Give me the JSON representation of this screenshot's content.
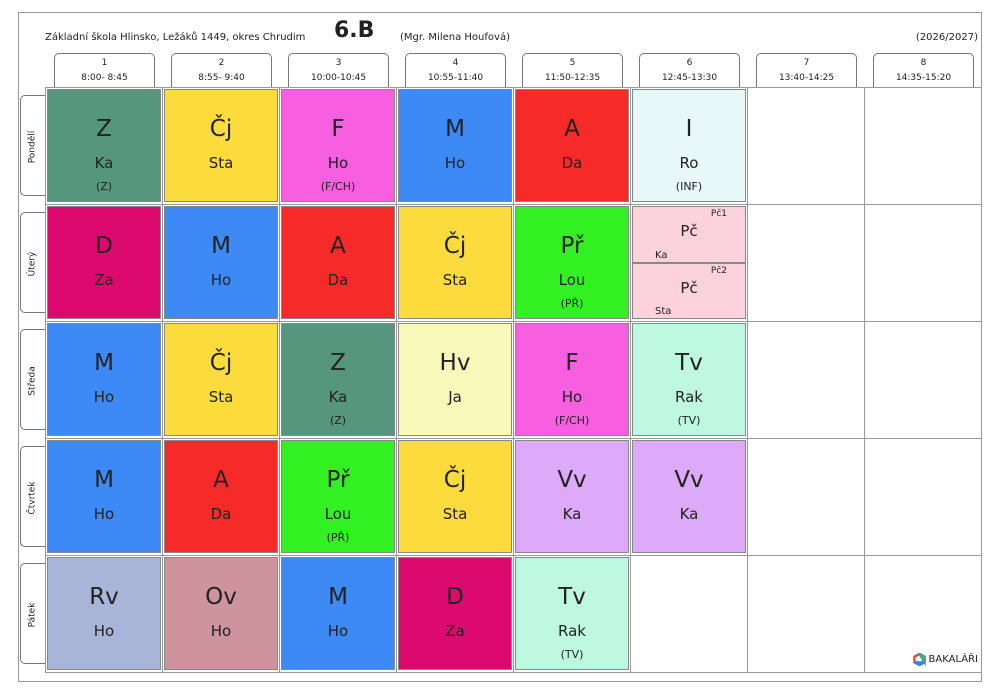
{
  "header": {
    "school": "Základní škola Hlinsko, Ležáků 1449, okres Chrudim",
    "class": "6.B",
    "teacher": "(Mgr. Milena Houfová)",
    "year": "(2026/2027)"
  },
  "periods": [
    {
      "number": "1",
      "time": "8:00- 8:45"
    },
    {
      "number": "2",
      "time": "8:55- 9:40"
    },
    {
      "number": "3",
      "time": "10:00-10:45"
    },
    {
      "number": "4",
      "time": "10:55-11:40"
    },
    {
      "number": "5",
      "time": "11:50-12:35"
    },
    {
      "number": "6",
      "time": "12:45-13:30"
    },
    {
      "number": "7",
      "time": "13:40-14:25"
    },
    {
      "number": "8",
      "time": "14:35-15:20"
    }
  ],
  "days": [
    {
      "name": "Pondělí",
      "lessons": [
        {
          "subject": "Z",
          "teacher": "Ka",
          "room": "(Z)",
          "color": "#56967f"
        },
        {
          "subject": "Čj",
          "teacher": "Sta",
          "color": "#fcdc3c"
        },
        {
          "subject": "F",
          "teacher": "Ho",
          "room": "(F/CH)",
          "color": "#f75fe0"
        },
        {
          "subject": "M",
          "teacher": "Ho",
          "color": "#3d8af7"
        },
        {
          "subject": "A",
          "teacher": "Da",
          "color": "#f72a2a"
        },
        {
          "subject": "I",
          "teacher": "Ro",
          "room": "(INF)",
          "color": "#e8f8f8"
        },
        null,
        null
      ]
    },
    {
      "name": "Úterý",
      "lessons": [
        {
          "subject": "D",
          "teacher": "Za",
          "color": "#dc0a6e"
        },
        {
          "subject": "M",
          "teacher": "Ho",
          "color": "#3d8af7"
        },
        {
          "subject": "A",
          "teacher": "Da",
          "color": "#f72a2a"
        },
        {
          "subject": "Čj",
          "teacher": "Sta",
          "color": "#fcdc3c"
        },
        {
          "subject": "Př",
          "teacher": "Lou",
          "room": "(PŘ)",
          "color": "#32f022"
        },
        {
          "groups": [
            {
              "group": "Pč1",
              "subject": "Pč",
              "teacher": "Ka",
              "color": "#fcd2dc"
            },
            {
              "group": "Pč2",
              "subject": "Pč",
              "teacher": "Sta",
              "color": "#fcd2dc"
            }
          ]
        },
        null,
        null
      ]
    },
    {
      "name": "Středa",
      "lessons": [
        {
          "subject": "M",
          "teacher": "Ho",
          "color": "#3d8af7"
        },
        {
          "subject": "Čj",
          "teacher": "Sta",
          "color": "#fcdc3c"
        },
        {
          "subject": "Z",
          "teacher": "Ka",
          "room": "(Z)",
          "color": "#56967f"
        },
        {
          "subject": "Hv",
          "teacher": "Ja",
          "color": "#f8f8bb"
        },
        {
          "subject": "F",
          "teacher": "Ho",
          "room": "(F/CH)",
          "color": "#f75fe0"
        },
        {
          "subject": "Tv",
          "teacher": "Rak",
          "room": "(TV)",
          "color": "#bff8e0"
        },
        null,
        null
      ]
    },
    {
      "name": "Čtvrtek",
      "lessons": [
        {
          "subject": "M",
          "teacher": "Ho",
          "color": "#3d8af7"
        },
        {
          "subject": "A",
          "teacher": "Da",
          "color": "#f72a2a"
        },
        {
          "subject": "Př",
          "teacher": "Lou",
          "room": "(PŘ)",
          "color": "#32f022"
        },
        {
          "subject": "Čj",
          "teacher": "Sta",
          "color": "#fcdc3c"
        },
        {
          "subject": "Vv",
          "teacher": "Ka",
          "color": "#dcaaf8"
        },
        {
          "subject": "Vv",
          "teacher": "Ka",
          "color": "#dcaaf8"
        },
        null,
        null
      ]
    },
    {
      "name": "Pátek",
      "lessons": [
        {
          "subject": "Rv",
          "teacher": "Ho",
          "color": "#a8b4d8"
        },
        {
          "subject": "Ov",
          "teacher": "Ho",
          "color": "#cd949e"
        },
        {
          "subject": "M",
          "teacher": "Ho",
          "color": "#3d8af7"
        },
        {
          "subject": "D",
          "teacher": "Za",
          "color": "#dc0a6e"
        },
        {
          "subject": "Tv",
          "teacher": "Rak",
          "room": "(TV)",
          "color": "#bff8e0"
        },
        null,
        null,
        null
      ]
    }
  ],
  "logo": "BAKALÁŘI"
}
